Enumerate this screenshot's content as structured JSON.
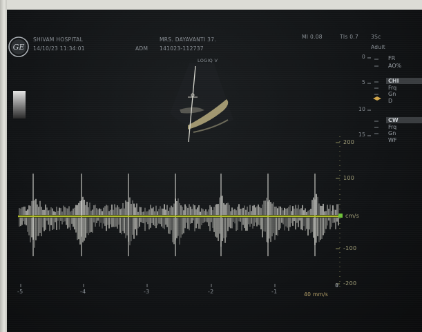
{
  "header": {
    "hospital": "SHIVAM HOSPITAL",
    "datetime": "14/10/23 11:34:01",
    "operator": "ADM",
    "patient_name": "MRS. DAYAVANTI 37.",
    "patient_id": "141023-112737",
    "mi": "MI 0.08",
    "tis": "TIs 0.7",
    "probe": "3Sc",
    "preset": "Adult"
  },
  "image_label": "LOGIQ V",
  "depth_scale": [
    "0",
    "5",
    "10",
    "15"
  ],
  "params": {
    "group1": [
      "FR",
      "AO%"
    ],
    "chi_title": "CHI",
    "chi_items": [
      "Frq",
      "Gn",
      "D"
    ],
    "cw_title": "CW",
    "cw_items": [
      "Frq",
      "Gn",
      "WF"
    ]
  },
  "doppler": {
    "unit": "cm/s",
    "velocity_ticks": [
      "200",
      "100",
      "-100",
      "-200"
    ],
    "time_ticks": [
      "-5",
      "-4",
      "-3",
      "-2",
      "-1",
      "0"
    ],
    "sweep_speed": "40 mm/s"
  }
}
